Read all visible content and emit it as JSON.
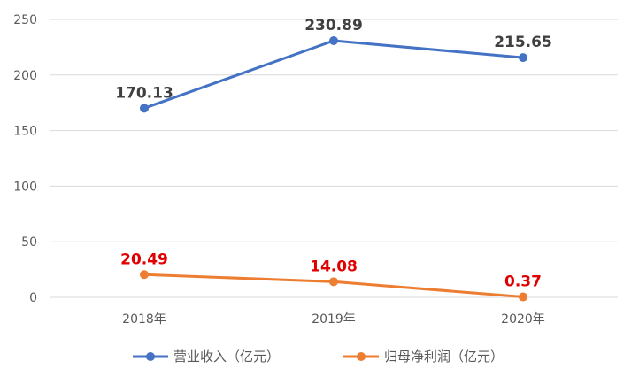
{
  "chart_data": {
    "type": "line",
    "categories": [
      "2018年",
      "2019年",
      "2020年"
    ],
    "yticks": [
      "0",
      "50",
      "100",
      "150",
      "200",
      "250"
    ],
    "ylim": [
      0,
      250
    ],
    "grid": true,
    "legend_position": "bottom",
    "series": [
      {
        "name": "营业收入（亿元）",
        "values": [
          170.13,
          230.89,
          215.65
        ],
        "labels": [
          "170.13",
          "230.89",
          "215.65"
        ],
        "color": "#4472C4",
        "label_color": "#404040"
      },
      {
        "name": "归母净利润（亿元）",
        "values": [
          20.49,
          14.08,
          0.37
        ],
        "labels": [
          "20.49",
          "14.08",
          "0.37"
        ],
        "color": "#ED7D31",
        "label_color": "#E00000"
      }
    ]
  }
}
